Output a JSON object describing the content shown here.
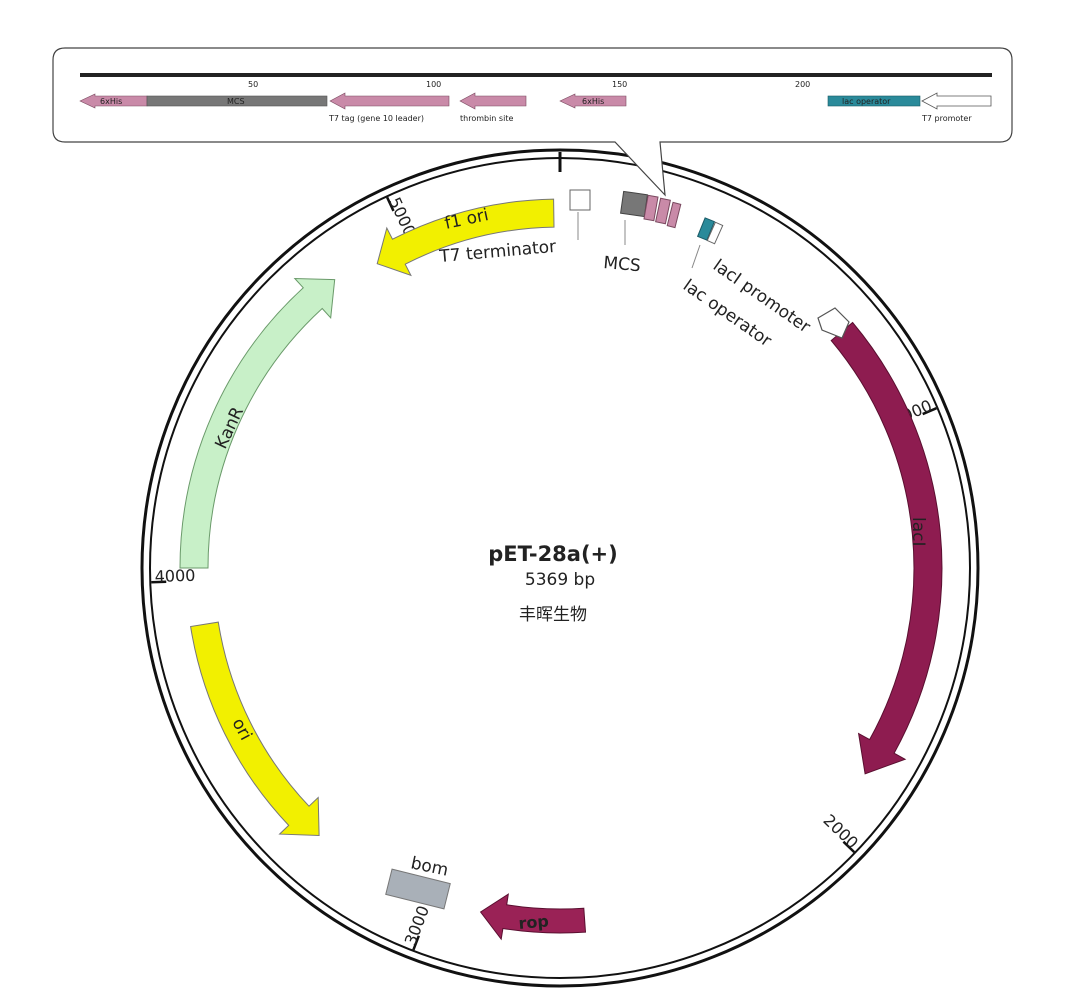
{
  "plasmid": {
    "name": "pET-28a(+)",
    "size": "5369 bp",
    "company": "丰晖生物"
  },
  "ticks": [
    "1000",
    "2000",
    "3000",
    "4000",
    "5000"
  ],
  "features": {
    "lacI": "lacI",
    "rop": "rop",
    "bom": "bom",
    "ori": "ori",
    "KanR": "KanR",
    "f1_ori": "f1 ori",
    "T7_terminator": "T7 terminator",
    "MCS": "MCS",
    "lac_operator": "lac operator",
    "lacI_promoter": "lacI promoter"
  },
  "colors": {
    "lacI": "#8e1c50",
    "rop": "#9a2256",
    "bom": "#a9b0b8",
    "ori": "#f2f000",
    "KanR": "#c8f0c8",
    "f1_ori": "#f2f000",
    "mcs_gray": "#777777",
    "pink": "#c98aa8",
    "teal": "#2a8a9a"
  },
  "inset": {
    "ticks": [
      "50",
      "100",
      "150",
      "200"
    ],
    "his1": "6xHis",
    "mcs": "MCS",
    "t7tag": "T7 tag (gene 10 leader)",
    "thrombin": "thrombin site",
    "his2": "6xHis",
    "lacop": "lac operator",
    "t7promoter": "T7 promoter"
  }
}
